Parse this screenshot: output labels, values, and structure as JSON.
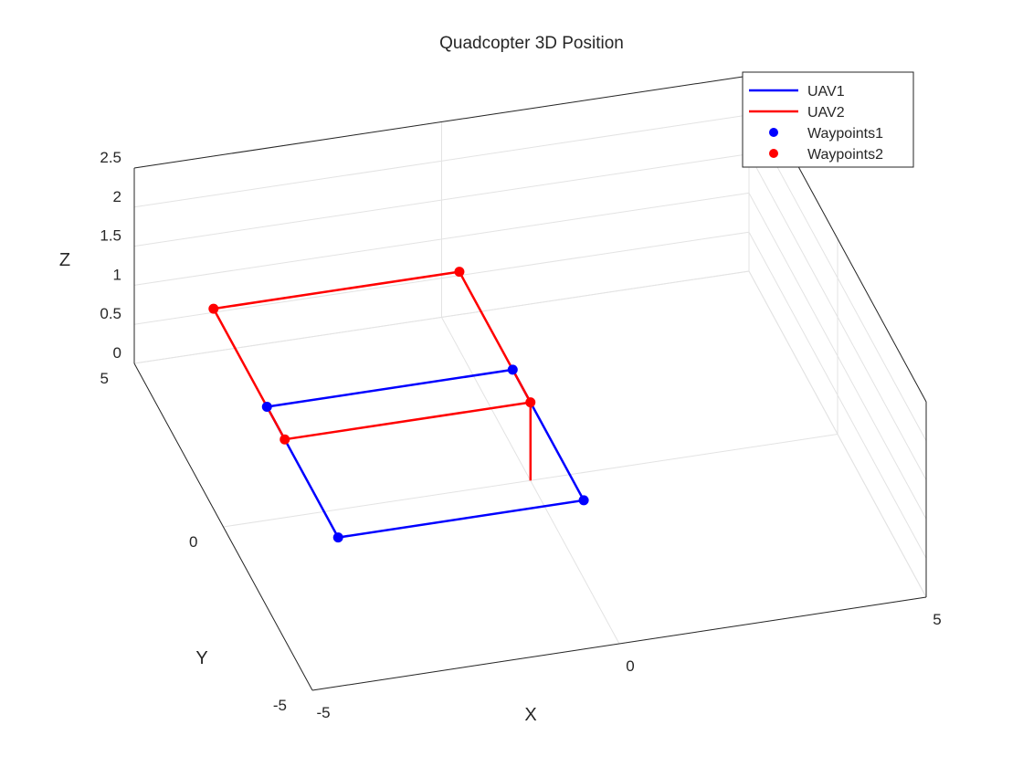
{
  "chart_data": {
    "type": "line",
    "title": "Quadcopter 3D Position",
    "xlabel": "X",
    "ylabel": "Y",
    "zlabel": "Z",
    "xlim": [
      -5,
      5
    ],
    "ylim": [
      -5,
      5
    ],
    "zlim": [
      0,
      2.5
    ],
    "x_ticks": [
      "-5",
      "0",
      "5"
    ],
    "y_ticks": [
      "-5",
      "0",
      "5"
    ],
    "z_ticks": [
      "0",
      "0.5",
      "1",
      "1.5",
      "2",
      "2.5"
    ],
    "grid": true,
    "box": true,
    "legend_position": "top-right",
    "colors": {
      "uav1": "#0000ff",
      "uav2": "#ff0000",
      "axis": "#262626",
      "grid": "#e3e3e3"
    },
    "series": [
      {
        "name": "UAV1",
        "kind": "line",
        "color": "#0000ff",
        "points": [
          [
            -4,
            1,
            1
          ],
          [
            -4,
            -3,
            1
          ],
          [
            0,
            -3,
            1
          ],
          [
            0,
            1,
            1
          ],
          [
            -4,
            1,
            1
          ],
          [
            -4,
            -3,
            1
          ],
          [
            0,
            -3,
            1
          ],
          [
            0,
            1,
            1
          ]
        ]
      },
      {
        "name": "UAV2",
        "kind": "line",
        "color": "#ff0000",
        "points": [
          [
            0,
            0,
            0
          ],
          [
            0,
            0,
            1
          ],
          [
            0,
            4,
            1
          ],
          [
            -4,
            4,
            1
          ],
          [
            -4,
            0,
            1
          ],
          [
            0,
            0,
            1
          ],
          [
            0,
            4,
            1
          ],
          [
            -4,
            4,
            1
          ],
          [
            -4,
            0,
            1
          ],
          [
            0,
            0,
            1
          ]
        ]
      },
      {
        "name": "Waypoints1",
        "kind": "markers",
        "color": "#0000ff",
        "points": [
          [
            -4,
            1,
            1
          ],
          [
            -4,
            -3,
            1
          ],
          [
            0,
            -3,
            1
          ],
          [
            0,
            1,
            1
          ]
        ]
      },
      {
        "name": "Waypoints2",
        "kind": "markers",
        "color": "#ff0000",
        "points": [
          [
            0,
            0,
            1
          ],
          [
            0,
            4,
            1
          ],
          [
            -4,
            4,
            1
          ],
          [
            -4,
            0,
            1
          ]
        ]
      }
    ]
  }
}
